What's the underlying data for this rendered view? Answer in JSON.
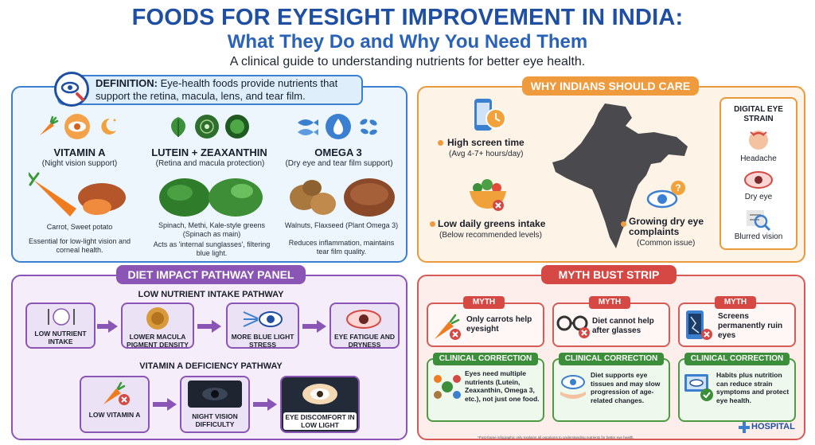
{
  "header": {
    "title": "FOODS FOR EYESIGHT IMPROVEMENT IN INDIA:",
    "title2": "What They Do and Why You Need Them",
    "subtitle": "A clinical guide to understanding nutrients for better eye health."
  },
  "definition": {
    "label": "DEFINITION:",
    "text": "Eye-health foods provide nutrients that support the retina, macula, lens, and tear film."
  },
  "nutrients": [
    {
      "name": "VITAMIN A",
      "role": "(Night vision support)",
      "foods": "Carrot, Sweet potato",
      "benefit": "Essential for low-light vision and corneal health."
    },
    {
      "name": "LUTEIN + ZEAXANTHIN",
      "role": "(Retina and macula protection)",
      "foods": "Spinach, Methi, Kale-style greens (Spinach as main)",
      "benefit": "Acts as 'internal sunglasses', filtering blue light."
    },
    {
      "name": "OMEGA 3",
      "role": "(Dry eye and tear film support)",
      "foods": "Walnuts, Flaxseed (Plant Omega 3)",
      "benefit": "Reduces inflammation, maintains tear film quality."
    }
  ],
  "care": {
    "title": "WHY INDIANS SHOULD CARE",
    "items": [
      {
        "main": "High screen time",
        "sub": "(Avg 4-7+ hours/day)"
      },
      {
        "main": "Low daily greens intake",
        "sub": "(Below recommended levels)"
      },
      {
        "main": "Growing dry eye complaints",
        "sub": "(Common issue)"
      }
    ],
    "strain": {
      "title": "DIGITAL EYE STRAIN",
      "items": [
        "Headache",
        "Dry eye",
        "Blurred vision"
      ]
    }
  },
  "pathway": {
    "title": "DIET IMPACT PATHWAY PANEL",
    "path1_title": "LOW NUTRIENT INTAKE PATHWAY",
    "path1": [
      "LOW NUTRIENT INTAKE",
      "LOWER MACULA PIGMENT DENSITY",
      "MORE BLUE LIGHT STRESS",
      "EYE FATIGUE AND DRYNESS"
    ],
    "path2_title": "VITAMIN A DEFICIENCY PATHWAY",
    "path2": [
      "LOW VITAMIN A",
      "NIGHT VISION DIFFICULTY",
      "EYE DISCOMFORT IN LOW LIGHT"
    ]
  },
  "myth": {
    "title": "MYTH BUST STRIP",
    "myth_label": "MYTH",
    "correction_label": "CLINICAL CORRECTION",
    "myths": [
      "Only carrots help eyesight",
      "Diet cannot help after glasses",
      "Screens permanently ruin eyes"
    ],
    "corrections": [
      "Eyes need multiple nutrients (Lutein, Zeaxanthin, Omega 3, etc.), not just one food.",
      "Diet supports eye tissues and may slow progression of age-related changes.",
      "Habits plus nutrition can reduce strain symptoms and protect eye health."
    ]
  },
  "footer": {
    "note": "*Post-frame infographic only explains all oopotions to understanding nutrients for better eye health.",
    "brand": "HOSPITAL"
  },
  "colors": {
    "title_blue": "#1f4fa3",
    "panel_blue": "#3b7fd0",
    "panel_orange": "#e99a3b",
    "panel_purple": "#8b55b5",
    "panel_red": "#d75a55",
    "correction_green": "#3c8e3a"
  }
}
